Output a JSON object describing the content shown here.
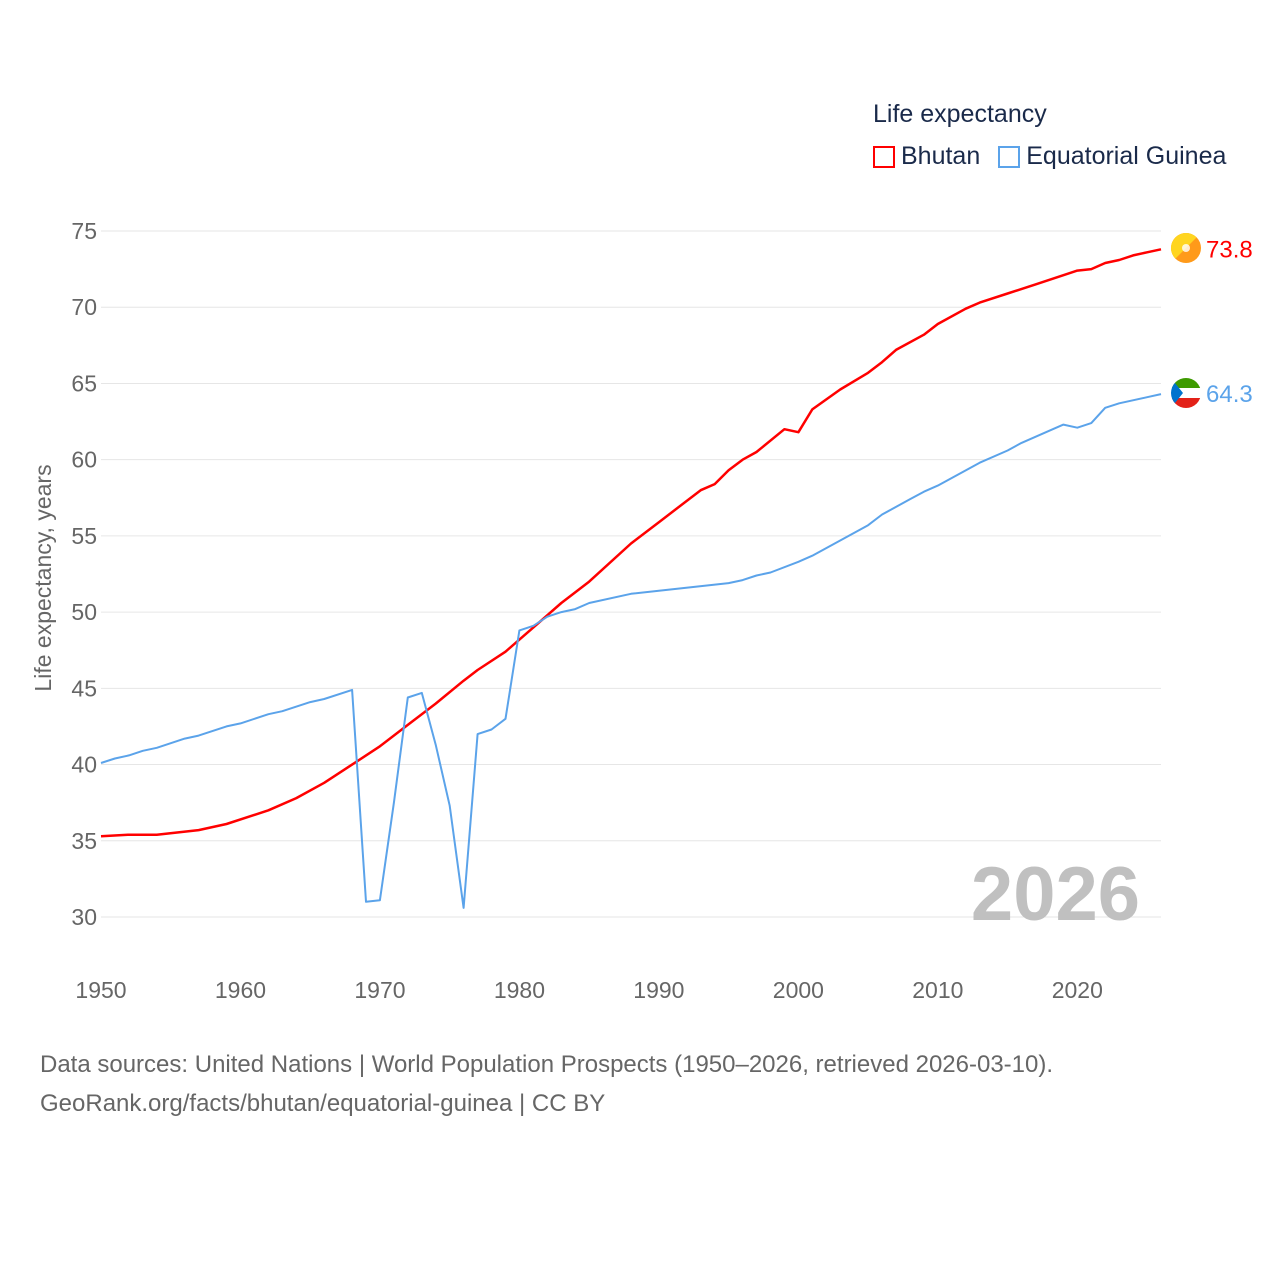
{
  "chart_data": {
    "type": "line",
    "ylabel": "Life expectancy, years",
    "xlabel": "",
    "xlim": [
      1950,
      2026
    ],
    "ylim": [
      30,
      75
    ],
    "xticks": [
      1950,
      1960,
      1970,
      1980,
      1990,
      2000,
      2010,
      2020
    ],
    "yticks": [
      30,
      35,
      40,
      45,
      50,
      55,
      60,
      65,
      70,
      75
    ],
    "grid": true,
    "legend_title": "Life expectancy",
    "legend_placement": "top-right",
    "year_watermark": "2026",
    "series": [
      {
        "name": "Bhutan",
        "color": "#ff0000",
        "end_label": "73.8",
        "x": [
          1950,
          1952,
          1954,
          1957,
          1959,
          1962,
          1964,
          1966,
          1968,
          1970,
          1972,
          1974,
          1976,
          1977,
          1979,
          1981,
          1983,
          1985,
          1988,
          1990,
          1993,
          1994,
          1995,
          1996,
          1997,
          1999,
          2000,
          2001,
          2003,
          2005,
          2006,
          2007,
          2009,
          2010,
          2012,
          2013,
          2015,
          2017,
          2019,
          2020,
          2021,
          2022,
          2023,
          2024,
          2025,
          2026
        ],
        "y": [
          35.3,
          35.4,
          35.4,
          35.7,
          36.1,
          37.0,
          37.8,
          38.8,
          40.0,
          41.2,
          42.6,
          44.0,
          45.5,
          46.2,
          47.4,
          49.0,
          50.6,
          52.0,
          54.5,
          55.9,
          58.0,
          58.4,
          59.3,
          60.0,
          60.5,
          62.0,
          61.8,
          63.3,
          64.6,
          65.7,
          66.4,
          67.2,
          68.2,
          68.9,
          69.9,
          70.3,
          70.9,
          71.5,
          72.1,
          72.4,
          72.5,
          72.9,
          73.1,
          73.4,
          73.6,
          73.8
        ]
      },
      {
        "name": "Equatorial Guinea",
        "color": "#5ba3ea",
        "end_label": "64.3",
        "x": [
          1950,
          1951,
          1952,
          1953,
          1954,
          1956,
          1957,
          1959,
          1960,
          1962,
          1963,
          1965,
          1966,
          1968,
          1969,
          1970,
          1971,
          1972,
          1973,
          1974,
          1975,
          1976,
          1977,
          1978,
          1979,
          1980,
          1981,
          1982,
          1983,
          1984,
          1985,
          1988,
          1990,
          1995,
          1996,
          1997,
          1998,
          2000,
          2001,
          2003,
          2005,
          2006,
          2008,
          2009,
          2010,
          2013,
          2015,
          2016,
          2018,
          2019,
          2020,
          2021,
          2022,
          2023,
          2025,
          2026
        ],
        "y": [
          40.1,
          40.4,
          40.6,
          40.9,
          41.1,
          41.7,
          41.9,
          42.5,
          42.7,
          43.3,
          43.5,
          44.1,
          44.3,
          44.9,
          31.0,
          31.1,
          37.5,
          44.4,
          44.7,
          41.3,
          37.3,
          30.6,
          42.0,
          42.3,
          43.0,
          48.8,
          49.1,
          49.7,
          50.0,
          50.2,
          50.6,
          51.2,
          51.4,
          51.9,
          52.1,
          52.4,
          52.6,
          53.3,
          53.7,
          54.7,
          55.7,
          56.4,
          57.4,
          57.9,
          58.3,
          59.8,
          60.6,
          61.1,
          61.9,
          62.3,
          62.1,
          62.4,
          63.4,
          63.7,
          64.1,
          64.3
        ]
      }
    ]
  },
  "footer": {
    "line1": "Data sources: United Nations | World Population Prospects (1950–2026, retrieved 2026-03-10).",
    "line2": "GeoRank.org/facts/bhutan/equatorial-guinea | CC BY"
  }
}
